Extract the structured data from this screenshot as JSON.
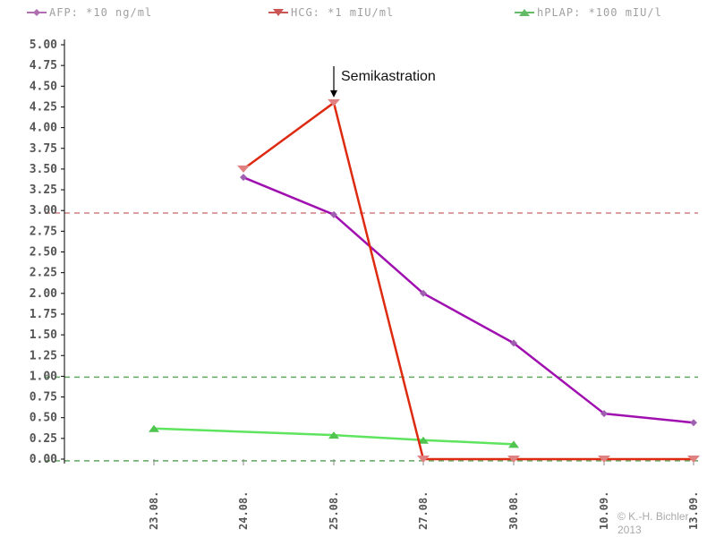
{
  "legend": [
    {
      "label": "AFP: *10 ng/ml",
      "color": "#b070b0",
      "marker": "diamond"
    },
    {
      "label": "HCG: *1 mIU/ml",
      "color": "#cc5555",
      "marker": "triangle-down"
    },
    {
      "label": "hPLAP: *100 mIU/l",
      "color": "#66bb66",
      "marker": "triangle-up"
    }
  ],
  "annotation": {
    "text": "Semikastration"
  },
  "copyright": {
    "line1": "© K.-H. Bichler",
    "line2": "2013"
  },
  "colors": {
    "afp": "#a010b0",
    "hcg": "#dd2a10",
    "hplap": "#5ee45e",
    "red_ref": "#d08080",
    "green_ref": "#60a860",
    "axis": "#000000"
  },
  "chart_data": {
    "type": "line",
    "categories": [
      "23.08.",
      "24.08.",
      "25.08.",
      "27.08.",
      "30.08.",
      "10.09.",
      "13.09."
    ],
    "ylim": [
      0,
      5
    ],
    "yticks": [
      "0.00",
      "0.25",
      "0.50",
      "0.75",
      "1.00",
      "1.25",
      "1.50",
      "1.75",
      "2.00",
      "2.25",
      "2.50",
      "2.75",
      "3.00",
      "3.25",
      "3.50",
      "3.75",
      "4.00",
      "4.25",
      "4.50",
      "4.75",
      "5.00"
    ],
    "reference_lines": [
      {
        "y": 2.97,
        "color": "red"
      },
      {
        "y": 0.99,
        "color": "green"
      },
      {
        "y": -0.02,
        "color": "green"
      }
    ],
    "series": [
      {
        "name": "AFP: *10 ng/ml",
        "key": "afp",
        "values": [
          null,
          3.4,
          2.95,
          2.0,
          1.4,
          0.55,
          0.44
        ]
      },
      {
        "name": "HCG: *1 mIU/ml",
        "key": "hcg",
        "values": [
          null,
          3.5,
          4.3,
          0.0,
          0.0,
          0.0,
          0.0
        ]
      },
      {
        "name": "hPLAP: *100 mIU/l",
        "key": "hplap",
        "values": [
          0.37,
          null,
          0.29,
          0.23,
          0.18,
          null,
          null
        ]
      }
    ],
    "annotation": {
      "text": "Semikastration",
      "category": "25.08.",
      "y": 4.3
    }
  }
}
